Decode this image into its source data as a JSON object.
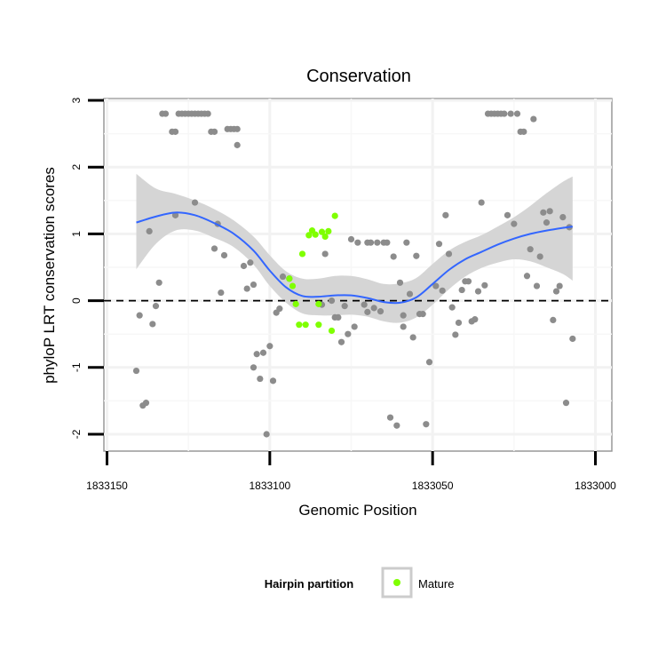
{
  "chart_data": {
    "type": "scatter",
    "title": "Conservation",
    "xlabel": "Genomic Position",
    "ylabel": "phyloP LRT conservation scores",
    "x_reversed": true,
    "xlim": [
      1833000,
      1833150
    ],
    "ylim": [
      -2,
      3
    ],
    "x_ticks": [
      {
        "value": 1833150,
        "label": "1833150"
      },
      {
        "value": 1833100,
        "label": "1833100"
      },
      {
        "value": 1833050,
        "label": "1833050"
      },
      {
        "value": 1833000,
        "label": "1833000"
      }
    ],
    "y_ticks": [
      {
        "value": -2,
        "label": "-2"
      },
      {
        "value": -1,
        "label": "-1"
      },
      {
        "value": 0,
        "label": "0"
      },
      {
        "value": 1,
        "label": "1"
      },
      {
        "value": 2,
        "label": "2"
      },
      {
        "value": 3,
        "label": "3"
      }
    ],
    "grid": true,
    "reference_line": {
      "y": 0,
      "style": "dashed"
    },
    "legend": {
      "title": "Hairpin partition",
      "placement": "bottom",
      "entries": [
        {
          "label": "Mature",
          "color": "#7FFF00"
        }
      ]
    },
    "colors": {
      "other": "#8C8C8C",
      "mature": "#7FFF00",
      "smooth": "#3366FF",
      "band": "#D3D3D3"
    },
    "series": [
      {
        "group": "other",
        "color": "#8C8C8C",
        "points": [
          [
            1833141,
            -1.05
          ],
          [
            1833140,
            -0.22
          ],
          [
            1833139,
            -1.57
          ],
          [
            1833138,
            -1.53
          ],
          [
            1833137,
            1.04
          ],
          [
            1833136,
            -0.35
          ],
          [
            1833135,
            -0.08
          ],
          [
            1833134,
            0.27
          ],
          [
            1833133,
            2.8
          ],
          [
            1833132,
            2.8
          ],
          [
            1833130,
            2.53
          ],
          [
            1833129,
            1.28
          ],
          [
            1833129,
            2.53
          ],
          [
            1833128,
            2.8
          ],
          [
            1833127,
            2.8
          ],
          [
            1833126,
            2.8
          ],
          [
            1833125,
            2.8
          ],
          [
            1833124,
            2.8
          ],
          [
            1833123,
            1.47
          ],
          [
            1833123,
            2.8
          ],
          [
            1833122,
            2.8
          ],
          [
            1833121,
            2.8
          ],
          [
            1833120,
            2.8
          ],
          [
            1833119,
            2.8
          ],
          [
            1833118,
            2.53
          ],
          [
            1833117,
            2.53
          ],
          [
            1833117,
            0.78
          ],
          [
            1833116,
            1.15
          ],
          [
            1833115,
            0.12
          ],
          [
            1833114,
            0.68
          ],
          [
            1833113,
            2.57
          ],
          [
            1833112,
            2.57
          ],
          [
            1833111,
            2.57
          ],
          [
            1833110,
            2.33
          ],
          [
            1833110,
            2.57
          ],
          [
            1833108,
            0.52
          ],
          [
            1833107,
            0.18
          ],
          [
            1833106,
            0.57
          ],
          [
            1833105,
            0.24
          ],
          [
            1833105,
            -1.0
          ],
          [
            1833104,
            -0.8
          ],
          [
            1833103,
            -1.17
          ],
          [
            1833102,
            -0.78
          ],
          [
            1833101,
            -2.0
          ],
          [
            1833100,
            -0.68
          ],
          [
            1833099,
            -1.2
          ],
          [
            1833098,
            -0.18
          ],
          [
            1833097,
            -0.12
          ],
          [
            1833096,
            0.36
          ],
          [
            1833094,
            0.33
          ],
          [
            1833084,
            -0.06
          ],
          [
            1833083,
            0.7
          ],
          [
            1833081,
            0.0
          ],
          [
            1833080,
            -0.25
          ],
          [
            1833079,
            -0.25
          ],
          [
            1833078,
            -0.62
          ],
          [
            1833077,
            -0.08
          ],
          [
            1833076,
            -0.5
          ],
          [
            1833075,
            0.92
          ],
          [
            1833074,
            -0.39
          ],
          [
            1833073,
            0.87
          ],
          [
            1833071,
            -0.06
          ],
          [
            1833070,
            -0.17
          ],
          [
            1833070,
            0.87
          ],
          [
            1833069,
            0.87
          ],
          [
            1833068,
            -0.11
          ],
          [
            1833067,
            0.87
          ],
          [
            1833066,
            -0.16
          ],
          [
            1833065,
            0.87
          ],
          [
            1833064,
            0.87
          ],
          [
            1833063,
            -1.75
          ],
          [
            1833062,
            0.66
          ],
          [
            1833061,
            -1.87
          ],
          [
            1833060,
            0.27
          ],
          [
            1833059,
            -0.22
          ],
          [
            1833059,
            -0.39
          ],
          [
            1833058,
            0.87
          ],
          [
            1833057,
            0.1
          ],
          [
            1833056,
            -0.55
          ],
          [
            1833055,
            0.67
          ],
          [
            1833054,
            -0.2
          ],
          [
            1833053,
            -0.2
          ],
          [
            1833052,
            -1.85
          ],
          [
            1833051,
            -0.92
          ],
          [
            1833049,
            0.22
          ],
          [
            1833048,
            0.85
          ],
          [
            1833047,
            0.15
          ],
          [
            1833046,
            1.28
          ],
          [
            1833045,
            0.7
          ],
          [
            1833044,
            -0.1
          ],
          [
            1833043,
            -0.51
          ],
          [
            1833042,
            -0.33
          ],
          [
            1833041,
            0.16
          ],
          [
            1833040,
            0.29
          ],
          [
            1833039,
            0.29
          ],
          [
            1833038,
            -0.31
          ],
          [
            1833037,
            -0.28
          ],
          [
            1833036,
            0.14
          ],
          [
            1833035,
            1.47
          ],
          [
            1833034,
            0.23
          ],
          [
            1833033,
            2.8
          ],
          [
            1833032,
            2.8
          ],
          [
            1833031,
            2.8
          ],
          [
            1833030,
            2.8
          ],
          [
            1833029,
            2.8
          ],
          [
            1833028,
            2.8
          ],
          [
            1833027,
            1.28
          ],
          [
            1833026,
            2.8
          ],
          [
            1833025,
            1.15
          ],
          [
            1833024,
            2.8
          ],
          [
            1833023,
            2.53
          ],
          [
            1833022,
            2.53
          ],
          [
            1833021,
            0.37
          ],
          [
            1833020,
            0.77
          ],
          [
            1833019,
            2.72
          ],
          [
            1833018,
            0.22
          ],
          [
            1833017,
            0.66
          ],
          [
            1833016,
            1.32
          ],
          [
            1833015,
            1.17
          ],
          [
            1833014,
            1.34
          ],
          [
            1833013,
            -0.29
          ],
          [
            1833012,
            0.14
          ],
          [
            1833011,
            0.22
          ],
          [
            1833010,
            1.25
          ],
          [
            1833009,
            -1.53
          ],
          [
            1833008,
            1.1
          ],
          [
            1833007,
            -0.57
          ]
        ]
      },
      {
        "group": "Mature",
        "name": "Mature",
        "color": "#7FFF00",
        "points": [
          [
            1833094,
            0.33
          ],
          [
            1833093,
            0.22
          ],
          [
            1833092,
            -0.05
          ],
          [
            1833091,
            -0.36
          ],
          [
            1833090,
            0.7
          ],
          [
            1833089,
            -0.36
          ],
          [
            1833088,
            0.98
          ],
          [
            1833087,
            1.05
          ],
          [
            1833086,
            0.99
          ],
          [
            1833085,
            -0.05
          ],
          [
            1833085,
            -0.36
          ],
          [
            1833084,
            1.03
          ],
          [
            1833083,
            0.96
          ],
          [
            1833082,
            1.04
          ],
          [
            1833081,
            -0.45
          ],
          [
            1833080,
            1.27
          ]
        ]
      }
    ],
    "smooth": {
      "method": "loess",
      "color": "#3366FF",
      "x": [
        1833141,
        1833135,
        1833129,
        1833123,
        1833117,
        1833111,
        1833105,
        1833100,
        1833095,
        1833090,
        1833085,
        1833080,
        1833075,
        1833070,
        1833065,
        1833060,
        1833055,
        1833050,
        1833045,
        1833040,
        1833035,
        1833030,
        1833025,
        1833020,
        1833015,
        1833010,
        1833007
      ],
      "y": [
        1.17,
        1.26,
        1.32,
        1.28,
        1.16,
        1.0,
        0.75,
        0.45,
        0.2,
        0.07,
        0.06,
        0.08,
        0.08,
        0.04,
        -0.02,
        -0.03,
        0.05,
        0.25,
        0.46,
        0.62,
        0.73,
        0.84,
        0.93,
        1.0,
        1.05,
        1.09,
        1.11
      ],
      "lower": [
        0.47,
        0.85,
        1.05,
        1.05,
        0.94,
        0.8,
        0.54,
        0.22,
        -0.03,
        -0.19,
        -0.22,
        -0.22,
        -0.21,
        -0.24,
        -0.31,
        -0.33,
        -0.25,
        -0.06,
        0.17,
        0.36,
        0.49,
        0.57,
        0.62,
        0.59,
        0.5,
        0.4,
        0.3
      ],
      "upper": [
        1.9,
        1.68,
        1.6,
        1.5,
        1.37,
        1.2,
        0.96,
        0.68,
        0.44,
        0.33,
        0.33,
        0.37,
        0.37,
        0.32,
        0.25,
        0.26,
        0.34,
        0.55,
        0.75,
        0.88,
        0.98,
        1.11,
        1.25,
        1.42,
        1.61,
        1.78,
        1.86
      ]
    }
  }
}
